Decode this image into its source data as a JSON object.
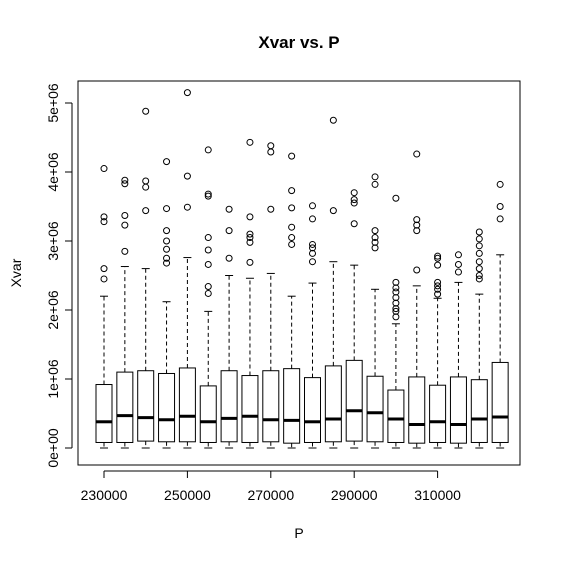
{
  "chart_data": {
    "type": "boxplot",
    "title": "Xvar vs. P",
    "xlabel": "P",
    "ylabel": "Xvar",
    "x_ticks": [
      "230000",
      "250000",
      "270000",
      "290000",
      "310000"
    ],
    "y_ticks": [
      "0e+00",
      "1e+06",
      "2e+06",
      "3e+06",
      "4e+06",
      "5e+06"
    ],
    "y_tick_values": [
      0,
      1000000,
      2000000,
      3000000,
      4000000,
      5000000
    ],
    "x_tick_values": [
      230000,
      250000,
      270000,
      290000,
      310000
    ],
    "ylim": [
      -200000,
      5450000
    ],
    "grid": false,
    "boxes": [
      {
        "x": 230000,
        "min": 0,
        "q1": 80000,
        "median": 380000,
        "q3": 920000,
        "max": 2200000,
        "outliers": [
          2450000,
          2600000,
          3280000,
          3350000,
          4050000
        ]
      },
      {
        "x": 235000,
        "min": 0,
        "q1": 80000,
        "median": 470000,
        "q3": 1100000,
        "max": 2630000,
        "outliers": [
          2850000,
          3230000,
          3370000,
          3830000,
          3880000
        ]
      },
      {
        "x": 240000,
        "min": 0,
        "q1": 100000,
        "median": 440000,
        "q3": 1120000,
        "max": 2600000,
        "outliers": [
          3440000,
          3780000,
          3870000,
          4880000
        ]
      },
      {
        "x": 245000,
        "min": 0,
        "q1": 90000,
        "median": 410000,
        "q3": 1080000,
        "max": 2120000,
        "outliers": [
          2680000,
          2750000,
          2880000,
          3000000,
          3150000,
          3470000,
          4150000
        ]
      },
      {
        "x": 250000,
        "min": 0,
        "q1": 90000,
        "median": 460000,
        "q3": 1160000,
        "max": 2760000,
        "outliers": [
          3490000,
          3940000,
          5150000
        ]
      },
      {
        "x": 255000,
        "min": 0,
        "q1": 80000,
        "median": 380000,
        "q3": 900000,
        "max": 1980000,
        "outliers": [
          2240000,
          2340000,
          2660000,
          2870000,
          3050000,
          3650000,
          3680000,
          4320000
        ]
      },
      {
        "x": 260000,
        "min": 0,
        "q1": 90000,
        "median": 430000,
        "q3": 1120000,
        "max": 2500000,
        "outliers": [
          2750000,
          3150000,
          3460000
        ]
      },
      {
        "x": 265000,
        "min": 0,
        "q1": 80000,
        "median": 460000,
        "q3": 1050000,
        "max": 2460000,
        "outliers": [
          2690000,
          2980000,
          3050000,
          3100000,
          3350000,
          4430000
        ]
      },
      {
        "x": 270000,
        "min": 0,
        "q1": 90000,
        "median": 410000,
        "q3": 1120000,
        "max": 2530000,
        "outliers": [
          3460000,
          4290000,
          4380000
        ]
      },
      {
        "x": 275000,
        "min": 0,
        "q1": 70000,
        "median": 400000,
        "q3": 1150000,
        "max": 2200000,
        "outliers": [
          2950000,
          3050000,
          3200000,
          3480000,
          3730000,
          4230000
        ]
      },
      {
        "x": 280000,
        "min": 0,
        "q1": 80000,
        "median": 380000,
        "q3": 1020000,
        "max": 2390000,
        "outliers": [
          2700000,
          2820000,
          2900000,
          2950000,
          3320000,
          3510000
        ]
      },
      {
        "x": 285000,
        "min": 0,
        "q1": 90000,
        "median": 420000,
        "q3": 1190000,
        "max": 2700000,
        "outliers": [
          3440000,
          4750000
        ]
      },
      {
        "x": 290000,
        "min": 0,
        "q1": 100000,
        "median": 540000,
        "q3": 1270000,
        "max": 2650000,
        "outliers": [
          3250000,
          3550000,
          3600000,
          3700000
        ]
      },
      {
        "x": 295000,
        "min": 0,
        "q1": 90000,
        "median": 510000,
        "q3": 1040000,
        "max": 2300000,
        "outliers": [
          2900000,
          2980000,
          3050000,
          3150000,
          3820000,
          3930000
        ]
      },
      {
        "x": 300000,
        "min": 0,
        "q1": 80000,
        "median": 420000,
        "q3": 840000,
        "max": 1800000,
        "outliers": [
          1900000,
          1980000,
          2020000,
          2100000,
          2180000,
          2260000,
          2320000,
          2400000,
          3620000
        ]
      },
      {
        "x": 305000,
        "min": 0,
        "q1": 70000,
        "median": 340000,
        "q3": 1030000,
        "max": 2350000,
        "outliers": [
          2580000,
          3150000,
          3230000,
          3310000,
          4260000
        ]
      },
      {
        "x": 310000,
        "min": 0,
        "q1": 80000,
        "median": 380000,
        "q3": 910000,
        "max": 2170000,
        "outliers": [
          2230000,
          2300000,
          2350000,
          2400000,
          2650000,
          2750000,
          2780000
        ]
      },
      {
        "x": 315000,
        "min": 0,
        "q1": 70000,
        "median": 340000,
        "q3": 1030000,
        "max": 2400000,
        "outliers": [
          2550000,
          2660000,
          2800000
        ]
      },
      {
        "x": 320000,
        "min": 0,
        "q1": 80000,
        "median": 420000,
        "q3": 990000,
        "max": 2230000,
        "outliers": [
          2450000,
          2500000,
          2600000,
          2700000,
          2820000,
          2930000,
          3030000,
          3130000
        ]
      },
      {
        "x": 325000,
        "min": 0,
        "q1": 80000,
        "median": 450000,
        "q3": 1240000,
        "max": 2800000,
        "outliers": [
          3320000,
          3500000,
          3820000
        ]
      }
    ]
  }
}
